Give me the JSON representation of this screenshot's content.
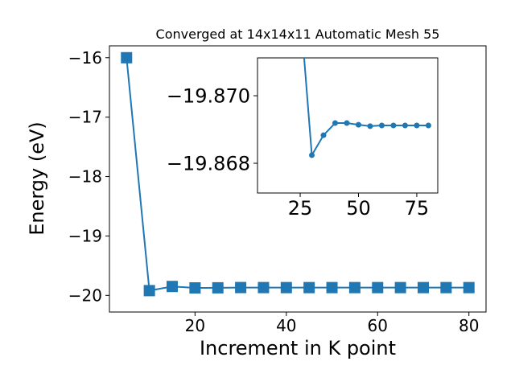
{
  "chart_data": [
    {
      "type": "line",
      "title": "Converged at 14x14x11 Automatic Mesh 55",
      "x_label": "Increment in K point",
      "y_label": "Energy (eV)",
      "x": [
        5,
        10,
        15,
        20,
        25,
        30,
        35,
        40,
        45,
        50,
        55,
        60,
        65,
        70,
        75,
        80
      ],
      "series": [
        {
          "color": "#1f77b4",
          "marker": "square",
          "values": [
            -16.0,
            -19.92,
            -19.85,
            -19.874,
            -19.8726,
            -19.86824,
            -19.86883,
            -19.86919,
            -19.86919,
            -19.86914,
            -19.8691,
            -19.86912,
            -19.86912,
            -19.86912,
            -19.86912,
            -19.86912
          ]
        }
      ],
      "xlim": [
        1.25,
        83.75
      ],
      "ylim": [
        -20.28,
        -15.8
      ],
      "xticks": [
        20,
        40,
        60,
        80
      ],
      "yticks": [
        {
          "value": -20,
          "label": "−20"
        },
        {
          "value": -19,
          "label": "−19"
        },
        {
          "value": -18,
          "label": "−18"
        },
        {
          "value": -17,
          "label": "−17"
        },
        {
          "value": -16,
          "label": "−16"
        }
      ]
    },
    {
      "type": "line",
      "x": [
        25,
        30,
        35,
        40,
        45,
        50,
        55,
        60,
        65,
        70,
        75,
        80
      ],
      "series": [
        {
          "color": "#1f77b4",
          "marker": "circle",
          "values": [
            -19.8726,
            -19.86824,
            -19.86883,
            -19.86919,
            -19.86919,
            -19.86914,
            -19.8691,
            -19.86912,
            -19.86912,
            -19.86912,
            -19.86912,
            -19.86912
          ]
        }
      ],
      "xlim": [
        6.7,
        84.0
      ],
      "ylim": [
        -19.86712,
        -19.87112
      ],
      "xticks": [
        25,
        50,
        75
      ],
      "yticks": [
        {
          "value": -19.868,
          "label": "−19.868"
        },
        {
          "value": -19.87,
          "label": "−19.870"
        }
      ]
    }
  ]
}
